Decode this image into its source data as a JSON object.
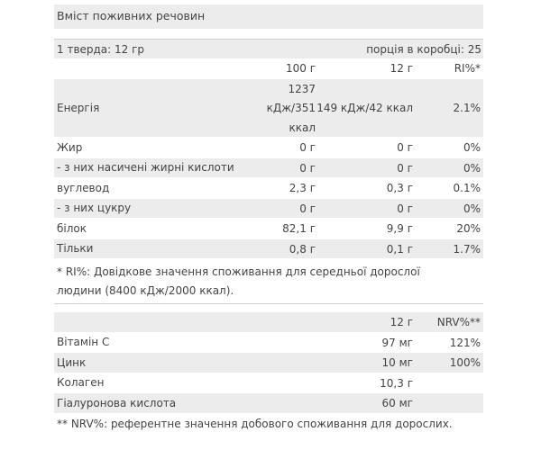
{
  "title": "Вміст поживних речовин",
  "serving": {
    "size": "1 тверда: 12 гр",
    "per_box": "порція в коробці: 25"
  },
  "table1": {
    "header": [
      "100 г",
      "12 г",
      "RI%*"
    ],
    "rows": [
      [
        "Енергія",
        [
          "1237",
          "кДж/351",
          "ккал"
        ],
        "149 кДж/42 ккал",
        "2.1%"
      ],
      [
        "Жир",
        "0 г",
        "0 г",
        "0%"
      ],
      [
        "- з них насичені жирні кислоти",
        "0 г",
        "0 г",
        "0%"
      ],
      [
        "вуглевод",
        "2,3 г",
        "0,3 г",
        "0.1%"
      ],
      [
        "- з них цукру",
        "0 г",
        "0 г",
        "0%"
      ],
      [
        "білок",
        "82,1 г",
        "9,9 г",
        "20%"
      ],
      [
        "Тільки",
        "0,8 г",
        "0,1 г",
        "1.7%"
      ]
    ],
    "footnote": "* RI%: Довідкове значення споживання для середньої дорослої людини (8400 кДж/2000 ккал)."
  },
  "table2": {
    "header": [
      "12 г",
      "NRV%**"
    ],
    "rows": [
      [
        "Вітамін С",
        "97 мг",
        "121%"
      ],
      [
        "Цинк",
        "10 мг",
        "100%"
      ],
      [
        "Колаген",
        "10,3 г"
      ],
      [
        "Гіалуронова кислота",
        "60 мг"
      ]
    ],
    "footnote": "** NRV%: референтне значення добового споживання для дорослих."
  }
}
